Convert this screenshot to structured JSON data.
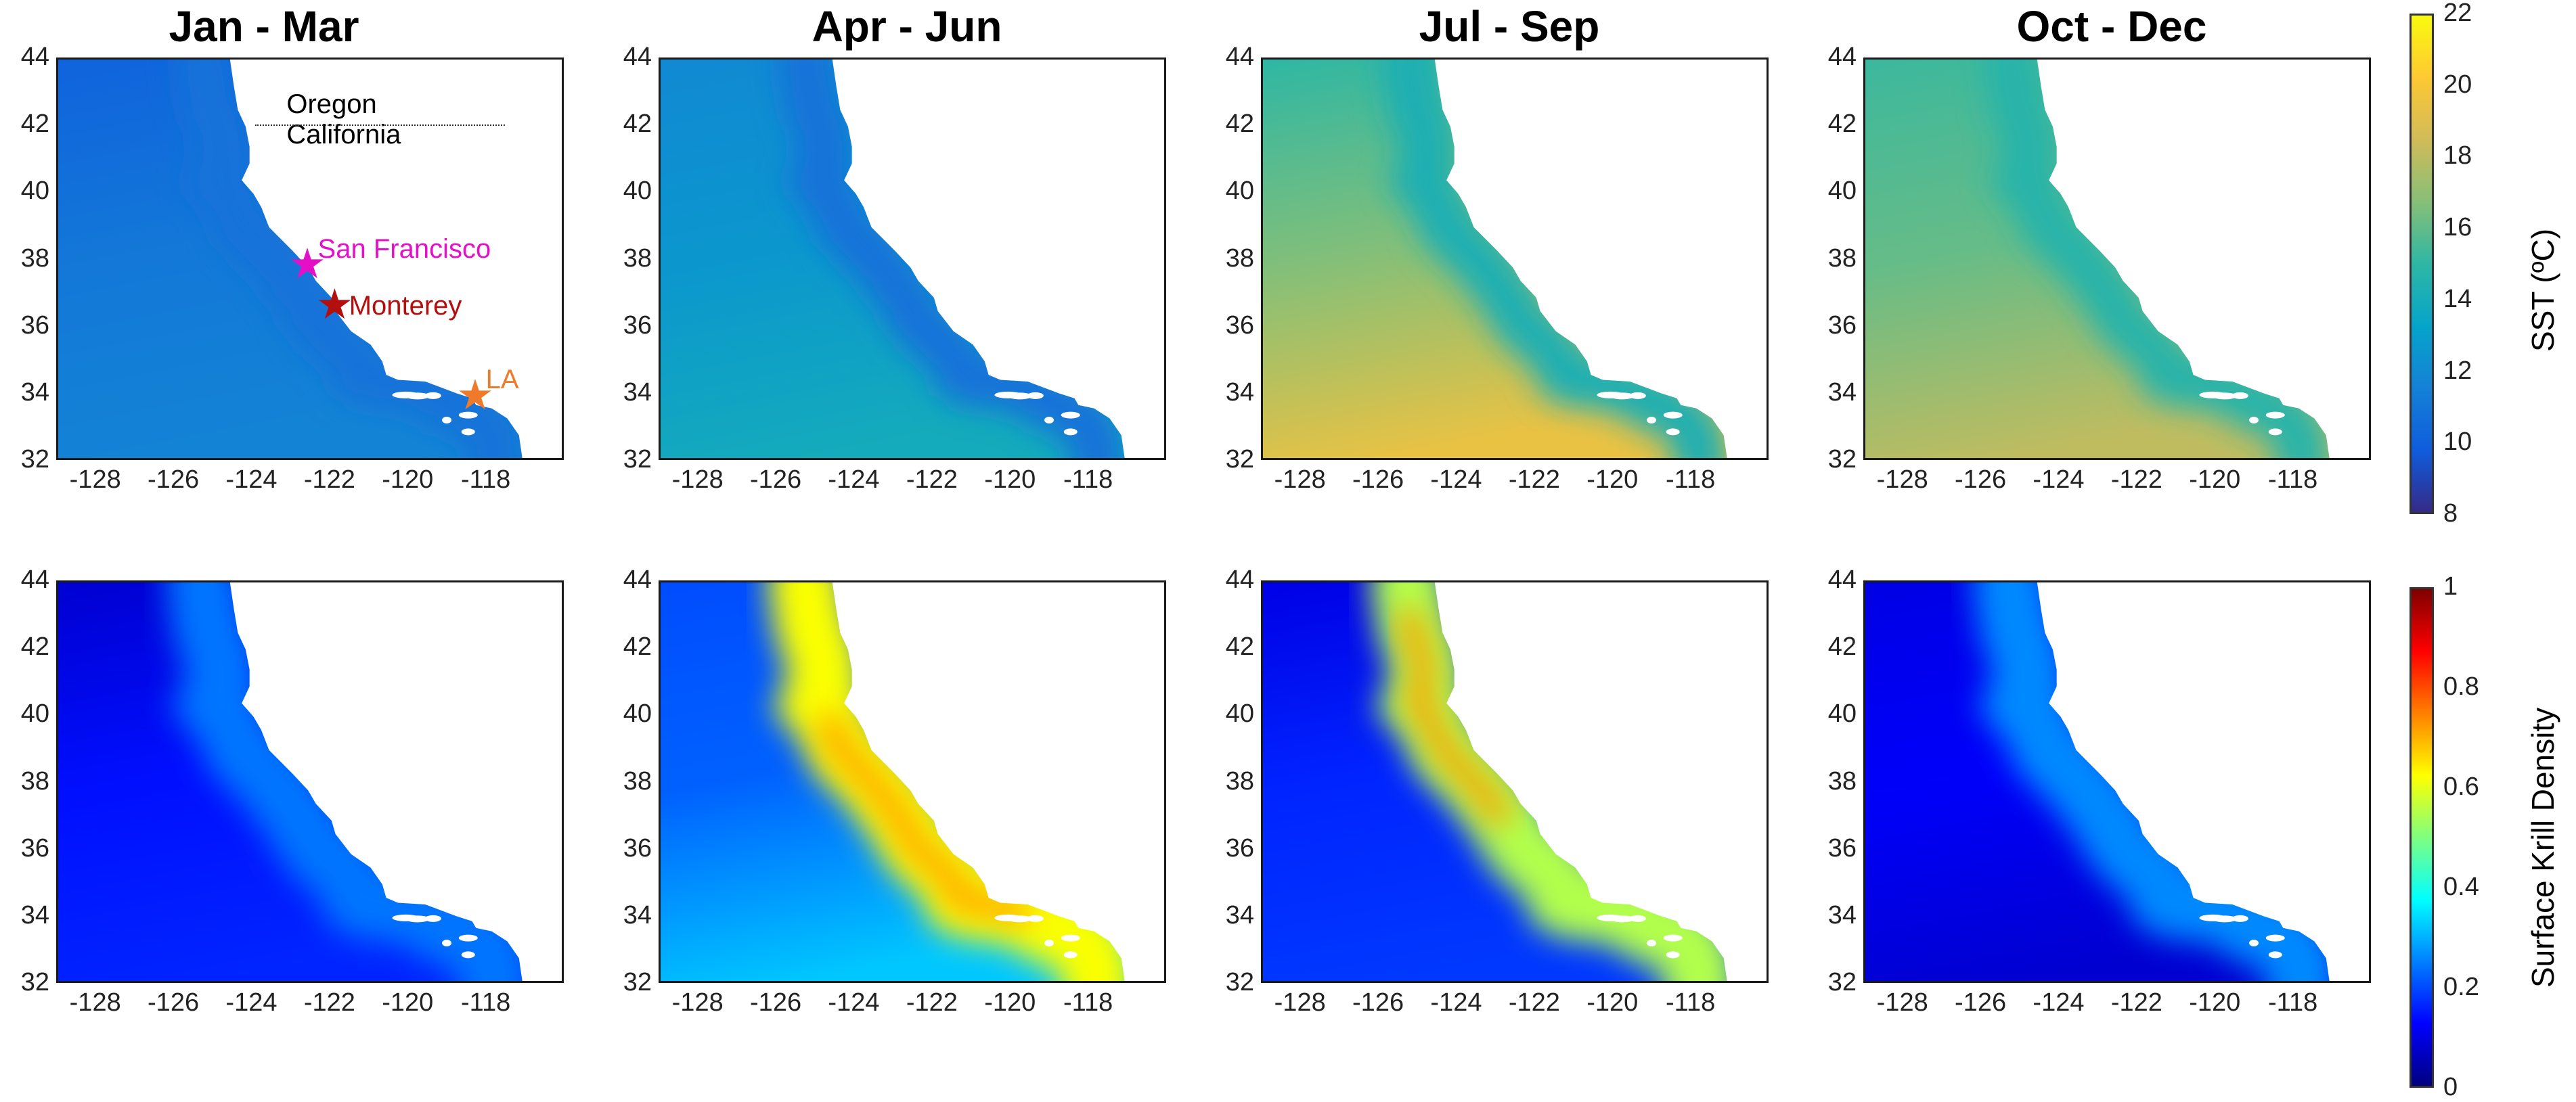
{
  "column_titles": [
    "Jan - Mar",
    "Apr - Jun",
    "Jul - Sep",
    "Oct - Dec"
  ],
  "axes": {
    "lon_ticks": [
      "-128",
      "-126",
      "-124",
      "-122",
      "-120",
      "-118"
    ],
    "lat_ticks": [
      "44",
      "42",
      "40",
      "38",
      "36",
      "34",
      "32"
    ],
    "lon_range": [
      -129,
      -116
    ],
    "lat_range": [
      32,
      44
    ]
  },
  "rows": [
    {
      "variable": "SST",
      "colorbar_label": "SST (ºC)",
      "colorbar_ticks": [
        "22",
        "20",
        "18",
        "16",
        "14",
        "12",
        "10",
        "8"
      ],
      "colorbar_range": [
        8,
        22
      ],
      "colormap": "parula",
      "colors": [
        "#352a87",
        "#0f5cdd",
        "#1481d6",
        "#06a4ca",
        "#2eb7a4",
        "#87bf77",
        "#d1bb59",
        "#fec832",
        "#f9fb0e"
      ]
    },
    {
      "variable": "Krill",
      "colorbar_label": "Surface Krill Density",
      "colorbar_ticks": [
        "1",
        "0.8",
        "0.6",
        "0.4",
        "0.2",
        "0"
      ],
      "colorbar_range": [
        0,
        1
      ],
      "colormap": "jet",
      "colors": [
        "#00007f",
        "#0000ff",
        "#007fff",
        "#00ffff",
        "#7fff7f",
        "#ffff00",
        "#ff7f00",
        "#ff0000",
        "#7f0000"
      ]
    }
  ],
  "annotations": {
    "oregon": "Oregon",
    "california": "California",
    "san_francisco": "San Francisco",
    "monterey": "Monterey",
    "la": "LA",
    "san_francisco_color": "#e60fc8",
    "monterey_color": "#b30f0f",
    "la_color": "#ee7a2a"
  },
  "panels": [
    {
      "row": 0,
      "col": 0,
      "mean": 11.0
    },
    {
      "row": 0,
      "col": 1,
      "mean": 12.6
    },
    {
      "row": 0,
      "col": 2,
      "mean": 16.8
    },
    {
      "row": 0,
      "col": 3,
      "mean": 15.8
    },
    {
      "row": 1,
      "col": 0,
      "mean": 0.12
    },
    {
      "row": 1,
      "col": 1,
      "mean": 0.35
    },
    {
      "row": 1,
      "col": 2,
      "mean": 0.3
    },
    {
      "row": 1,
      "col": 3,
      "mean": 0.14
    }
  ]
}
